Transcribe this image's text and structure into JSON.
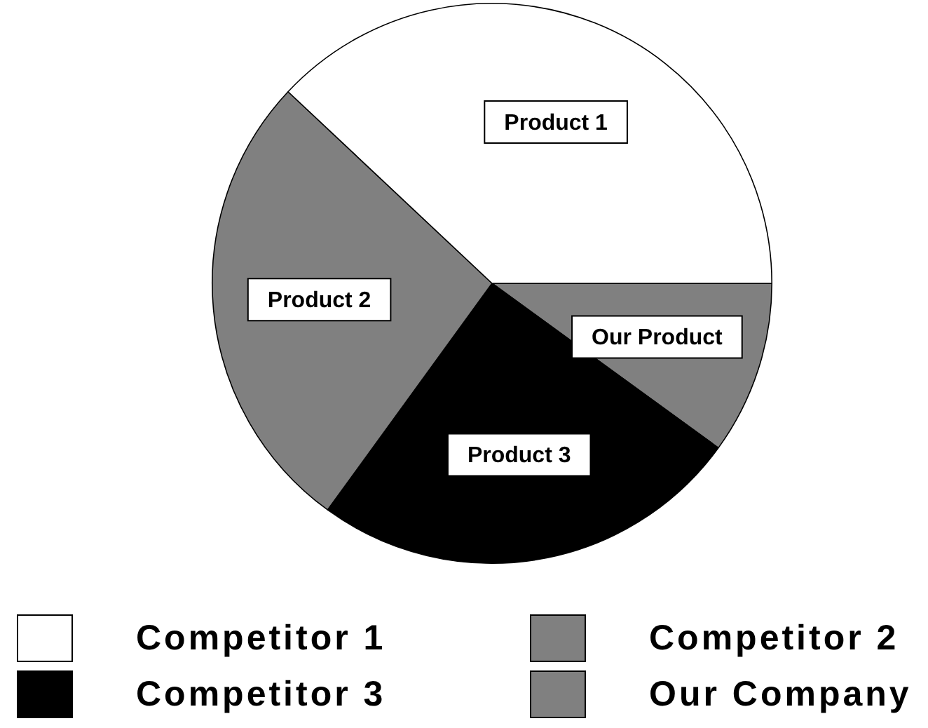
{
  "chart_data": {
    "type": "pie",
    "categories": [
      "Competitor 1",
      "Competitor 2",
      "Competitor 3",
      "Our Company"
    ],
    "values": [
      38,
      27,
      25,
      10
    ],
    "colors": [
      "#ffffff",
      "#808080",
      "#000000",
      "#808080"
    ],
    "annotations": [
      {
        "text": "Product 1",
        "x": "Competitor 1"
      },
      {
        "text": "Product 2",
        "x": "Competitor 2"
      },
      {
        "text": "Product 3",
        "x": "Competitor 3"
      },
      {
        "text": "Our Product",
        "x": "Our Company"
      }
    ],
    "legend": "bottom"
  }
}
